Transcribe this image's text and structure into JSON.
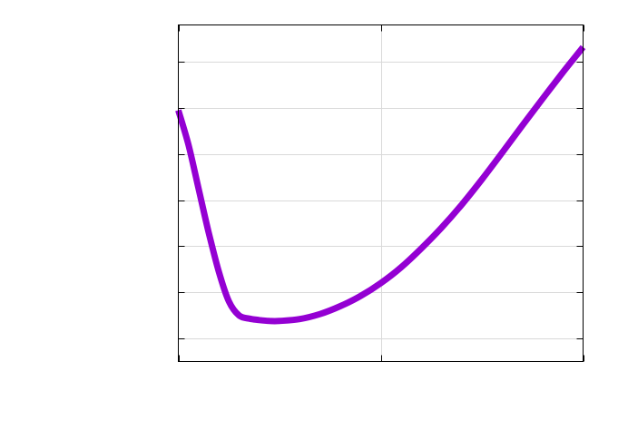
{
  "chart_data": {
    "type": "line",
    "title": "",
    "xlabel": "",
    "ylabel": "",
    "xlim": [
      0,
      2
    ],
    "ylim": [
      0,
      7.3
    ],
    "xticks": [
      0,
      1,
      2
    ],
    "yticks": [
      0.5,
      1.5,
      2.5,
      3.5,
      4.5,
      5.5,
      6.5
    ],
    "grid": true,
    "series": [
      {
        "color": "#9400d3",
        "x": [
          0,
          0.05,
          0.1,
          0.15,
          0.2,
          0.25,
          0.3,
          0.35,
          0.4,
          0.45,
          0.5,
          0.6,
          0.7,
          0.8,
          0.9,
          1.0,
          1.1,
          1.2,
          1.3,
          1.4,
          1.5,
          1.6,
          1.7,
          1.8,
          1.9,
          2.0
        ],
        "y": [
          5.45,
          4.7,
          3.75,
          2.8,
          1.95,
          1.3,
          1.0,
          0.93,
          0.9,
          0.88,
          0.88,
          0.92,
          1.03,
          1.2,
          1.42,
          1.7,
          2.04,
          2.45,
          2.9,
          3.4,
          3.95,
          4.53,
          5.12,
          5.7,
          6.27,
          6.82
        ]
      }
    ]
  }
}
